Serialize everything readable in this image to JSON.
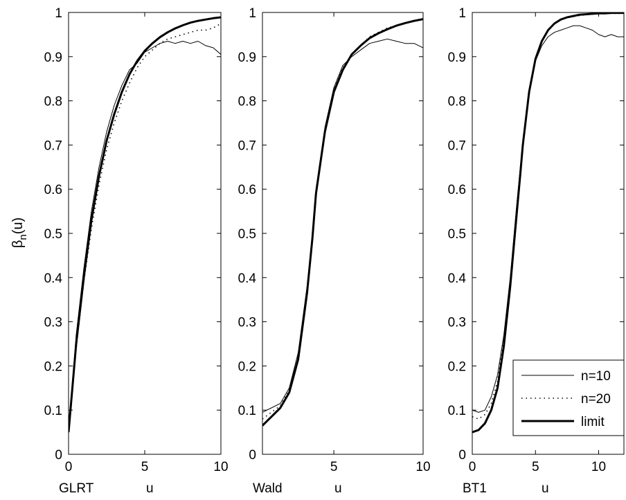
{
  "figure": {
    "ylabel_main": "β",
    "ylabel_sub": "n",
    "ylabel_tail": "(u)"
  },
  "legend": {
    "placement": "bottom-right of third panel",
    "entries": [
      {
        "label": "n=10",
        "style": "thin-solid"
      },
      {
        "label": "n=20",
        "style": "dotted"
      },
      {
        "label": "limit",
        "style": "thick-solid"
      }
    ]
  },
  "chart_data": [
    {
      "type": "line",
      "name": "GLRT",
      "xlabel_left": "GLRT",
      "xlabel": "u",
      "xlim": [
        0,
        10
      ],
      "ylim": [
        0,
        1
      ],
      "xticks": [
        0,
        5,
        10
      ],
      "yticks": [
        0,
        0.1,
        0.2,
        0.3,
        0.4,
        0.5,
        0.6,
        0.7,
        0.8,
        0.9,
        1
      ],
      "grid": false,
      "series": [
        {
          "name": "n=10",
          "style": "thin-solid",
          "x": [
            0,
            0.5,
            1,
            1.5,
            2,
            2.5,
            3,
            3.5,
            4,
            4.5,
            5,
            5.5,
            6,
            6.5,
            7,
            7.5,
            8,
            8.5,
            9,
            9.5,
            10
          ],
          "y": [
            0.05,
            0.27,
            0.42,
            0.55,
            0.65,
            0.73,
            0.79,
            0.835,
            0.87,
            0.885,
            0.91,
            0.92,
            0.93,
            0.935,
            0.93,
            0.935,
            0.93,
            0.935,
            0.925,
            0.92,
            0.905
          ]
        },
        {
          "name": "n=20",
          "style": "dotted",
          "x": [
            0,
            0.5,
            1,
            1.5,
            2,
            2.5,
            3,
            3.5,
            4,
            4.5,
            5,
            5.5,
            6,
            6.5,
            7,
            7.5,
            8,
            8.5,
            9,
            9.5,
            10
          ],
          "y": [
            0.05,
            0.24,
            0.39,
            0.51,
            0.61,
            0.69,
            0.75,
            0.8,
            0.84,
            0.875,
            0.9,
            0.915,
            0.93,
            0.94,
            0.945,
            0.95,
            0.955,
            0.96,
            0.96,
            0.965,
            0.975
          ]
        },
        {
          "name": "limit",
          "style": "thick-solid",
          "x": [
            0,
            0.5,
            1,
            1.5,
            2,
            2.5,
            3,
            3.5,
            4,
            4.5,
            5,
            5.5,
            6,
            6.5,
            7,
            7.5,
            8,
            8.5,
            9,
            9.5,
            10
          ],
          "y": [
            0.05,
            0.25,
            0.4,
            0.53,
            0.63,
            0.71,
            0.77,
            0.82,
            0.86,
            0.89,
            0.913,
            0.93,
            0.944,
            0.955,
            0.964,
            0.971,
            0.977,
            0.981,
            0.984,
            0.987,
            0.989
          ]
        }
      ]
    },
    {
      "type": "line",
      "name": "Wald",
      "xlabel_left": "Wald",
      "xlabel": "u",
      "xlim": [
        1,
        10
      ],
      "ylim": [
        0,
        1
      ],
      "xticks": [
        5,
        10
      ],
      "yticks": [
        0,
        0.1,
        0.2,
        0.3,
        0.4,
        0.5,
        0.6,
        0.7,
        0.8,
        0.9,
        1
      ],
      "grid": false,
      "series": [
        {
          "name": "n=10",
          "style": "thin-solid",
          "x": [
            1,
            1.5,
            2,
            2.5,
            3,
            3.5,
            3.8,
            4,
            4.5,
            5,
            5.5,
            6,
            6.5,
            7,
            7.5,
            8,
            8.5,
            9,
            9.5,
            10
          ],
          "y": [
            0.095,
            0.105,
            0.115,
            0.15,
            0.23,
            0.38,
            0.5,
            0.6,
            0.74,
            0.83,
            0.88,
            0.9,
            0.915,
            0.93,
            0.935,
            0.94,
            0.935,
            0.93,
            0.93,
            0.92
          ]
        },
        {
          "name": "n=20",
          "style": "dotted",
          "x": [
            1,
            1.5,
            2,
            2.5,
            3,
            3.5,
            3.8,
            4,
            4.5,
            5,
            5.5,
            6,
            6.5,
            7,
            7.5,
            8,
            8.5,
            9,
            9.5,
            10
          ],
          "y": [
            0.08,
            0.095,
            0.11,
            0.145,
            0.22,
            0.37,
            0.49,
            0.59,
            0.735,
            0.825,
            0.875,
            0.905,
            0.925,
            0.945,
            0.955,
            0.965,
            0.97,
            0.975,
            0.98,
            0.985
          ]
        },
        {
          "name": "limit",
          "style": "thick-solid",
          "x": [
            1,
            1.5,
            2,
            2.5,
            3,
            3.5,
            3.8,
            4,
            4.5,
            5,
            5.5,
            6,
            6.5,
            7,
            7.5,
            8,
            8.5,
            9,
            9.5,
            10
          ],
          "y": [
            0.065,
            0.085,
            0.105,
            0.14,
            0.215,
            0.365,
            0.49,
            0.59,
            0.73,
            0.82,
            0.87,
            0.905,
            0.925,
            0.942,
            0.953,
            0.962,
            0.97,
            0.976,
            0.981,
            0.985
          ]
        }
      ]
    },
    {
      "type": "line",
      "name": "BT1",
      "xlabel_left": "BT1",
      "xlabel": "u",
      "xlim": [
        0,
        12
      ],
      "ylim": [
        0,
        1
      ],
      "xticks": [
        0,
        5,
        10
      ],
      "yticks": [
        0,
        0.1,
        0.2,
        0.3,
        0.4,
        0.5,
        0.6,
        0.7,
        0.8,
        0.9,
        1
      ],
      "grid": false,
      "series": [
        {
          "name": "n=10",
          "style": "thin-solid",
          "x": [
            0,
            0.5,
            1,
            1.5,
            2,
            2.5,
            3,
            3.5,
            3.8,
            4,
            4.5,
            5,
            5.5,
            6,
            6.5,
            7,
            7.5,
            8,
            8.5,
            9,
            9.5,
            10,
            10.5,
            11,
            11.5,
            12
          ],
          "y": [
            0.1,
            0.095,
            0.1,
            0.13,
            0.18,
            0.27,
            0.4,
            0.56,
            0.65,
            0.71,
            0.82,
            0.89,
            0.925,
            0.945,
            0.955,
            0.96,
            0.965,
            0.97,
            0.97,
            0.965,
            0.96,
            0.95,
            0.945,
            0.95,
            0.945,
            0.945
          ]
        },
        {
          "name": "n=20",
          "style": "dotted",
          "x": [
            0,
            0.5,
            1,
            1.5,
            2,
            2.5,
            3,
            3.5,
            3.8,
            4,
            4.5,
            5,
            5.5,
            6,
            6.5,
            7,
            7.5,
            8,
            8.5,
            9,
            9.5,
            10,
            10.5,
            11,
            11.5,
            12
          ],
          "y": [
            0.085,
            0.08,
            0.09,
            0.115,
            0.165,
            0.26,
            0.39,
            0.55,
            0.64,
            0.7,
            0.82,
            0.895,
            0.935,
            0.96,
            0.975,
            0.983,
            0.988,
            0.991,
            0.993,
            0.995,
            0.996,
            0.997,
            0.998,
            0.998,
            0.998,
            0.998
          ]
        },
        {
          "name": "limit",
          "style": "thick-solid",
          "x": [
            0,
            0.5,
            1,
            1.5,
            2,
            2.5,
            3,
            3.5,
            3.8,
            4,
            4.5,
            5,
            5.5,
            6,
            6.5,
            7,
            7.5,
            8,
            8.5,
            9,
            9.5,
            10,
            10.5,
            11,
            11.5,
            12
          ],
          "y": [
            0.05,
            0.055,
            0.07,
            0.1,
            0.15,
            0.245,
            0.38,
            0.54,
            0.635,
            0.7,
            0.82,
            0.895,
            0.935,
            0.96,
            0.975,
            0.984,
            0.989,
            0.992,
            0.995,
            0.996,
            0.997,
            0.998,
            0.998,
            0.999,
            0.999,
            0.999
          ]
        }
      ]
    }
  ]
}
